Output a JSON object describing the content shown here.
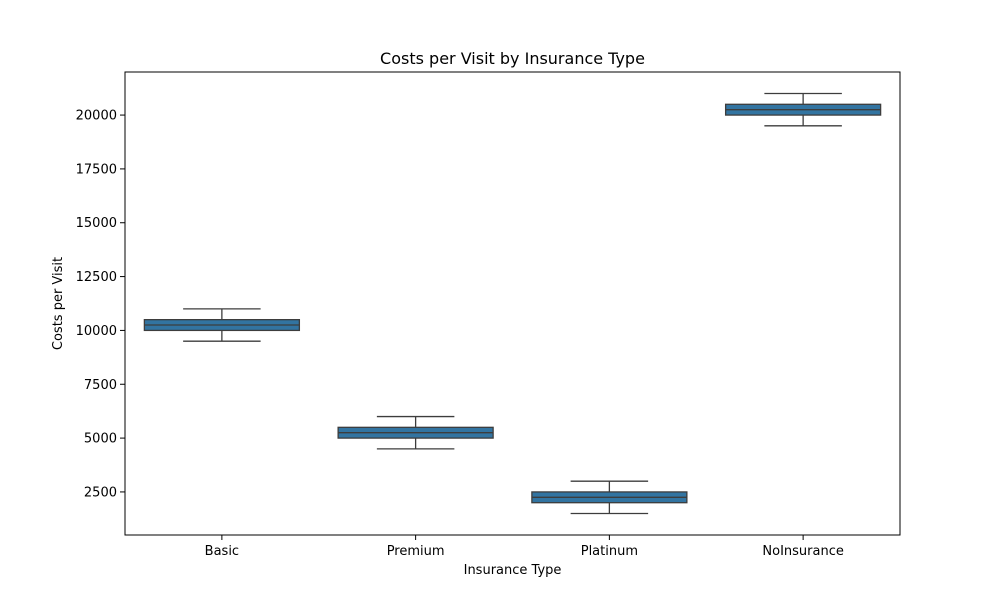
{
  "chart_data": {
    "type": "box",
    "title": "Costs per Visit by Insurance Type",
    "xlabel": "Insurance Type",
    "ylabel": "Costs per Visit",
    "categories": [
      "Basic",
      "Premium",
      "Platinum",
      "NoInsurance"
    ],
    "boxes": [
      {
        "category": "Basic",
        "min": 9500,
        "q1": 10000,
        "median": 10250,
        "q3": 10500,
        "max": 11000
      },
      {
        "category": "Premium",
        "min": 4500,
        "q1": 5000,
        "median": 5250,
        "q3": 5500,
        "max": 6000
      },
      {
        "category": "Platinum",
        "min": 1500,
        "q1": 2000,
        "median": 2250,
        "q3": 2500,
        "max": 3000
      },
      {
        "category": "NoInsurance",
        "min": 19500,
        "q1": 20000,
        "median": 20250,
        "q3": 20500,
        "max": 21000
      }
    ],
    "ylim": [
      500,
      22000
    ],
    "yticks": [
      2500,
      5000,
      7500,
      10000,
      12500,
      15000,
      17500,
      20000
    ],
    "ytick_labels": [
      "2500",
      "5000",
      "7500",
      "10000",
      "12500",
      "15000",
      "17500",
      "20000"
    ],
    "grid": false,
    "colors": {
      "box_fill": "#3274a1",
      "box_edge": "#3d3d3d",
      "axis": "#000000"
    }
  }
}
